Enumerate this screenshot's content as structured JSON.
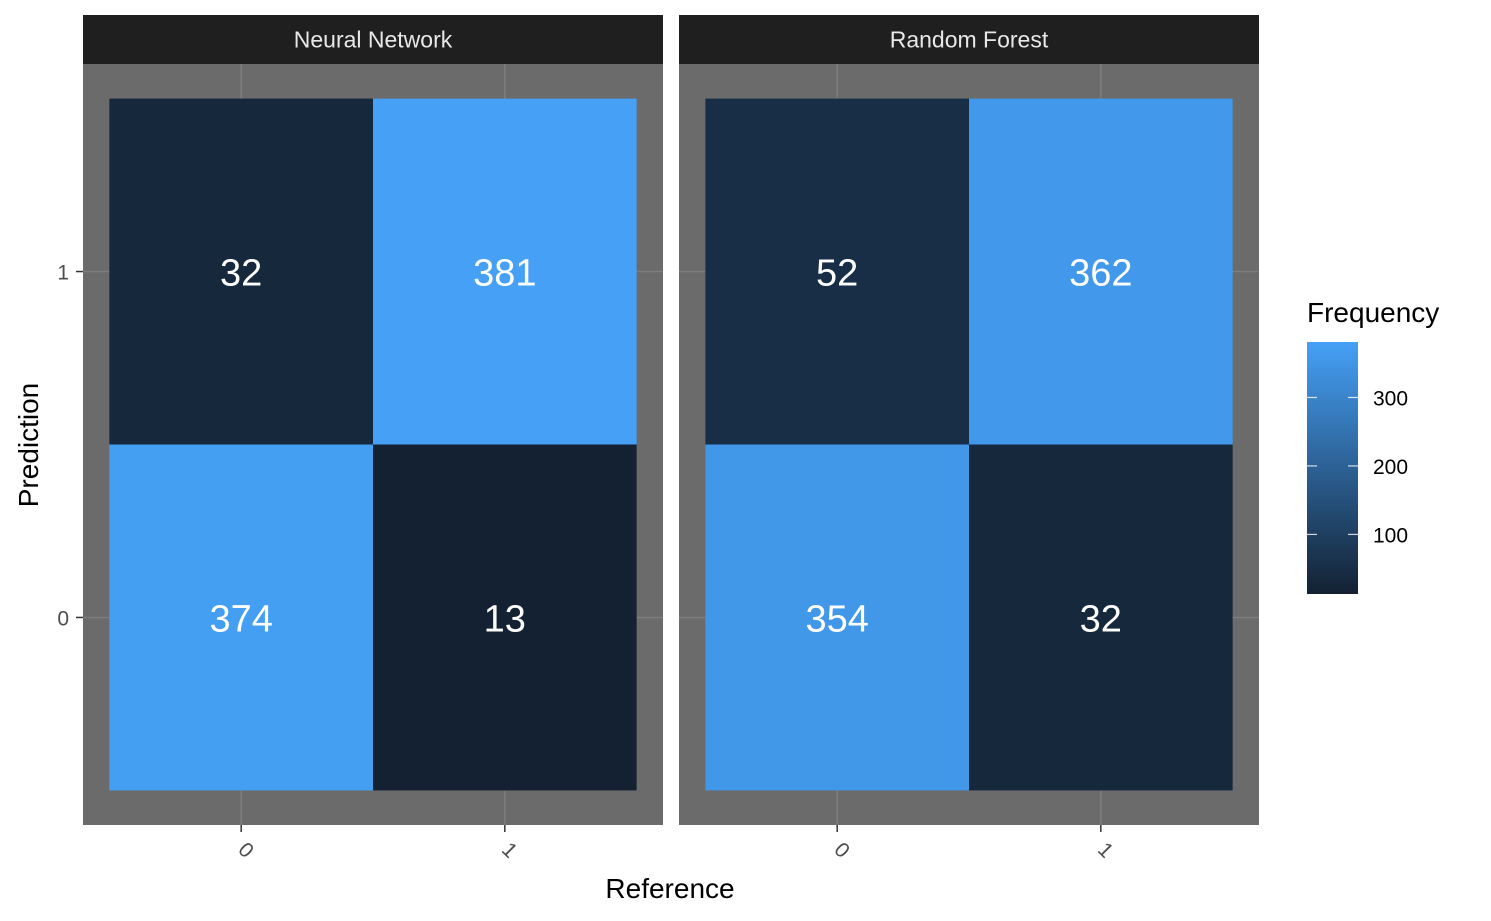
{
  "chart_data": {
    "type": "heatmap",
    "xlabel": "Reference",
    "ylabel": "Prediction",
    "x_categories": [
      "0",
      "1"
    ],
    "y_categories": [
      "0",
      "1"
    ],
    "panels": [
      {
        "name": "Neural Network",
        "cells": [
          {
            "reference": "0",
            "prediction": "1",
            "value": 32
          },
          {
            "reference": "1",
            "prediction": "1",
            "value": 381
          },
          {
            "reference": "0",
            "prediction": "0",
            "value": 374
          },
          {
            "reference": "1",
            "prediction": "0",
            "value": 13
          }
        ]
      },
      {
        "name": "Random Forest",
        "cells": [
          {
            "reference": "0",
            "prediction": "1",
            "value": 52
          },
          {
            "reference": "1",
            "prediction": "1",
            "value": 362
          },
          {
            "reference": "0",
            "prediction": "0",
            "value": 354
          },
          {
            "reference": "1",
            "prediction": "0",
            "value": 32
          }
        ]
      }
    ],
    "legend": {
      "title": "Frequency",
      "ticks": [
        100,
        200,
        300
      ],
      "range": [
        13,
        381
      ],
      "low_color": "#132132",
      "high_color": "#45a0f6",
      "placement": "right"
    },
    "colors": {
      "panel_background": "#6b6b6b",
      "grid": "#7d7d7d",
      "strip_background": "#1f1f1f"
    }
  }
}
